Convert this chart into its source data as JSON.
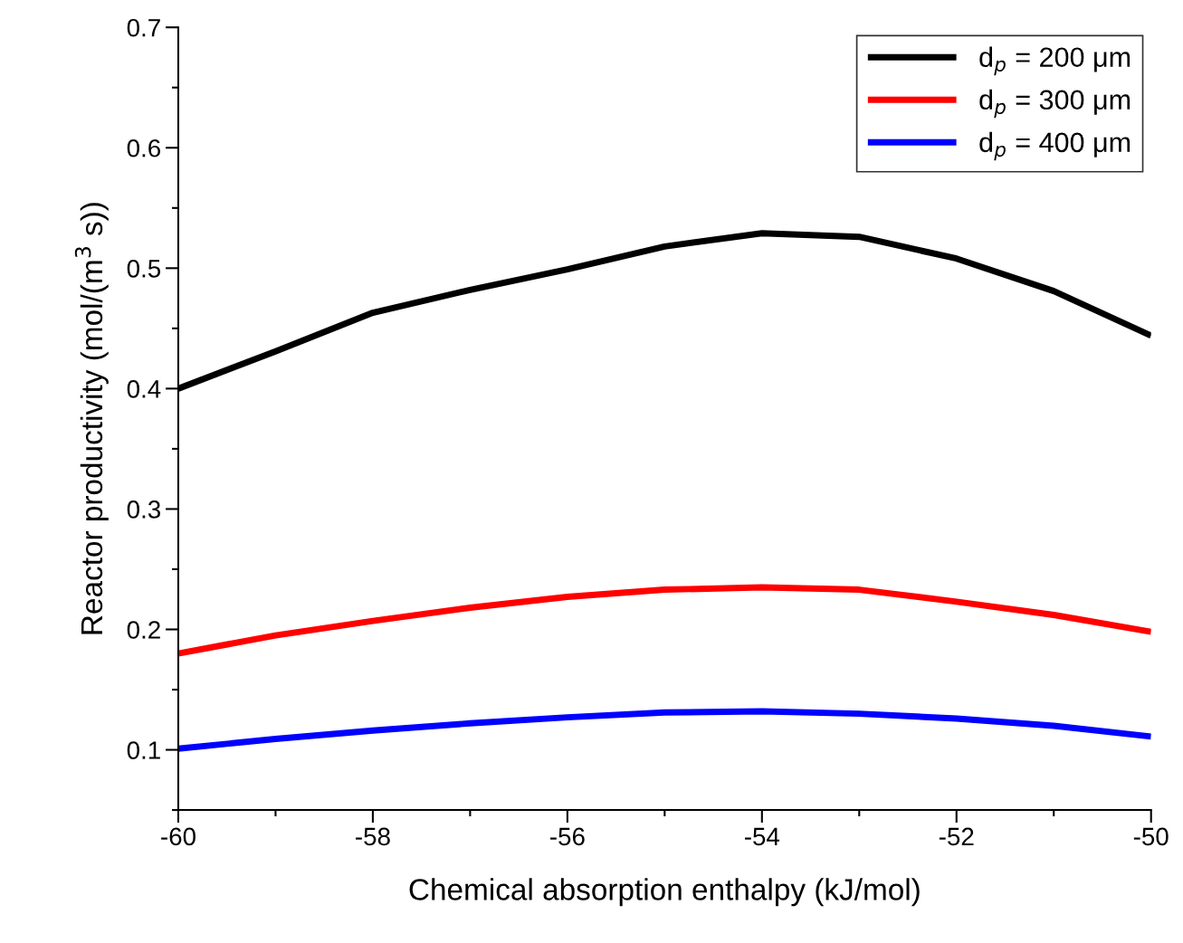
{
  "chart_data": {
    "type": "line",
    "xlabel": "Chemical absorption enthalpy (kJ/mol)",
    "ylabel": "Reactor productivity (mol/(m$^{3}$ s))",
    "x": [
      -60,
      -59,
      -58,
      -57,
      -56,
      -55,
      -54,
      -53,
      -52,
      -51,
      -50
    ],
    "series": [
      {
        "name": "d$_{p}$ = 200 μm",
        "color": "#000000",
        "values": [
          0.4,
          0.431,
          0.463,
          0.482,
          0.499,
          0.518,
          0.529,
          0.526,
          0.508,
          0.481,
          0.444
        ]
      },
      {
        "name": "d$_{p}$ = 300 μm",
        "color": "#ff0000",
        "values": [
          0.18,
          0.195,
          0.207,
          0.218,
          0.227,
          0.233,
          0.235,
          0.233,
          0.223,
          0.212,
          0.198
        ]
      },
      {
        "name": "d$_{p}$ = 400 μm",
        "color": "#0000ff",
        "values": [
          0.101,
          0.109,
          0.116,
          0.122,
          0.127,
          0.131,
          0.132,
          0.13,
          0.126,
          0.12,
          0.111
        ]
      }
    ],
    "xlim": [
      -60,
      -50
    ],
    "xticks": [
      -60,
      {
        "value": -59,
        "label": null
      },
      -58,
      {
        "value": -57,
        "label": null
      },
      -56,
      {
        "value": -55,
        "label": null
      },
      -54,
      {
        "value": -53,
        "label": null
      },
      -52,
      {
        "value": -51,
        "label": null
      },
      -50
    ],
    "ylim": [
      0.05,
      0.7
    ],
    "yticks": [
      {
        "value": 0.05,
        "label": null
      },
      0.1,
      {
        "value": 0.15,
        "label": null
      },
      0.2,
      {
        "value": 0.25,
        "label": null
      },
      0.3,
      {
        "value": 0.35,
        "label": null
      },
      0.4,
      {
        "value": 0.45,
        "label": null
      },
      0.5,
      {
        "value": 0.55,
        "label": null
      },
      0.6,
      {
        "value": 0.65,
        "label": null
      },
      0.7
    ],
    "grid": false,
    "legend": "top right",
    "line_style": "solid",
    "marker": "none"
  }
}
